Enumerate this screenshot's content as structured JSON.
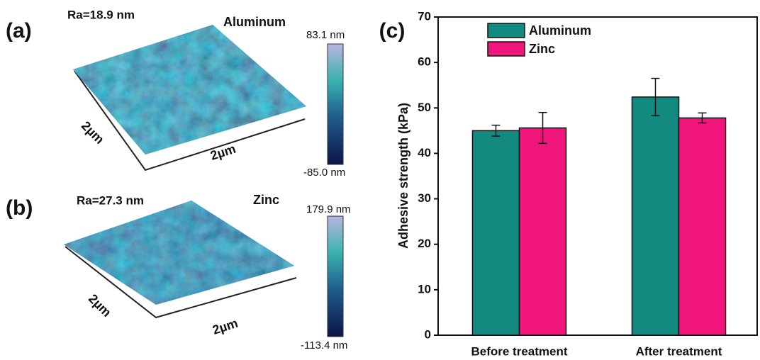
{
  "chart_data": {
    "type": "bar",
    "panel_label": "(c)",
    "categories": [
      "Before treatment",
      "After treatment"
    ],
    "series": [
      {
        "name": "Aluminum",
        "color": "#128a80",
        "values": [
          45,
          52.4
        ],
        "errors": [
          1.2,
          4.1
        ]
      },
      {
        "name": "Zinc",
        "color": "#f0157a",
        "values": [
          45.6,
          47.8
        ],
        "errors": [
          3.4,
          1.1
        ]
      }
    ],
    "y_label": "Adhesive strength (kPa)",
    "ylim": [
      0,
      70
    ],
    "yticks": [
      0,
      10,
      20,
      30,
      40,
      50,
      60,
      70
    ],
    "legend": "upper left"
  },
  "panels": [
    {
      "label": "(a)",
      "roughness": "Ra=18.9 nm",
      "material": "Aluminum",
      "scale_max": "83.1 nm",
      "scale_min": "-85.0 nm",
      "x_size": "2µm",
      "y_size": "2µm"
    },
    {
      "label": "(b)",
      "roughness": "Ra=27.3 nm",
      "material": "Zinc",
      "scale_max": "179.9 nm",
      "scale_min": "-113.4 nm",
      "x_size": "2µm",
      "y_size": "2µm"
    }
  ]
}
